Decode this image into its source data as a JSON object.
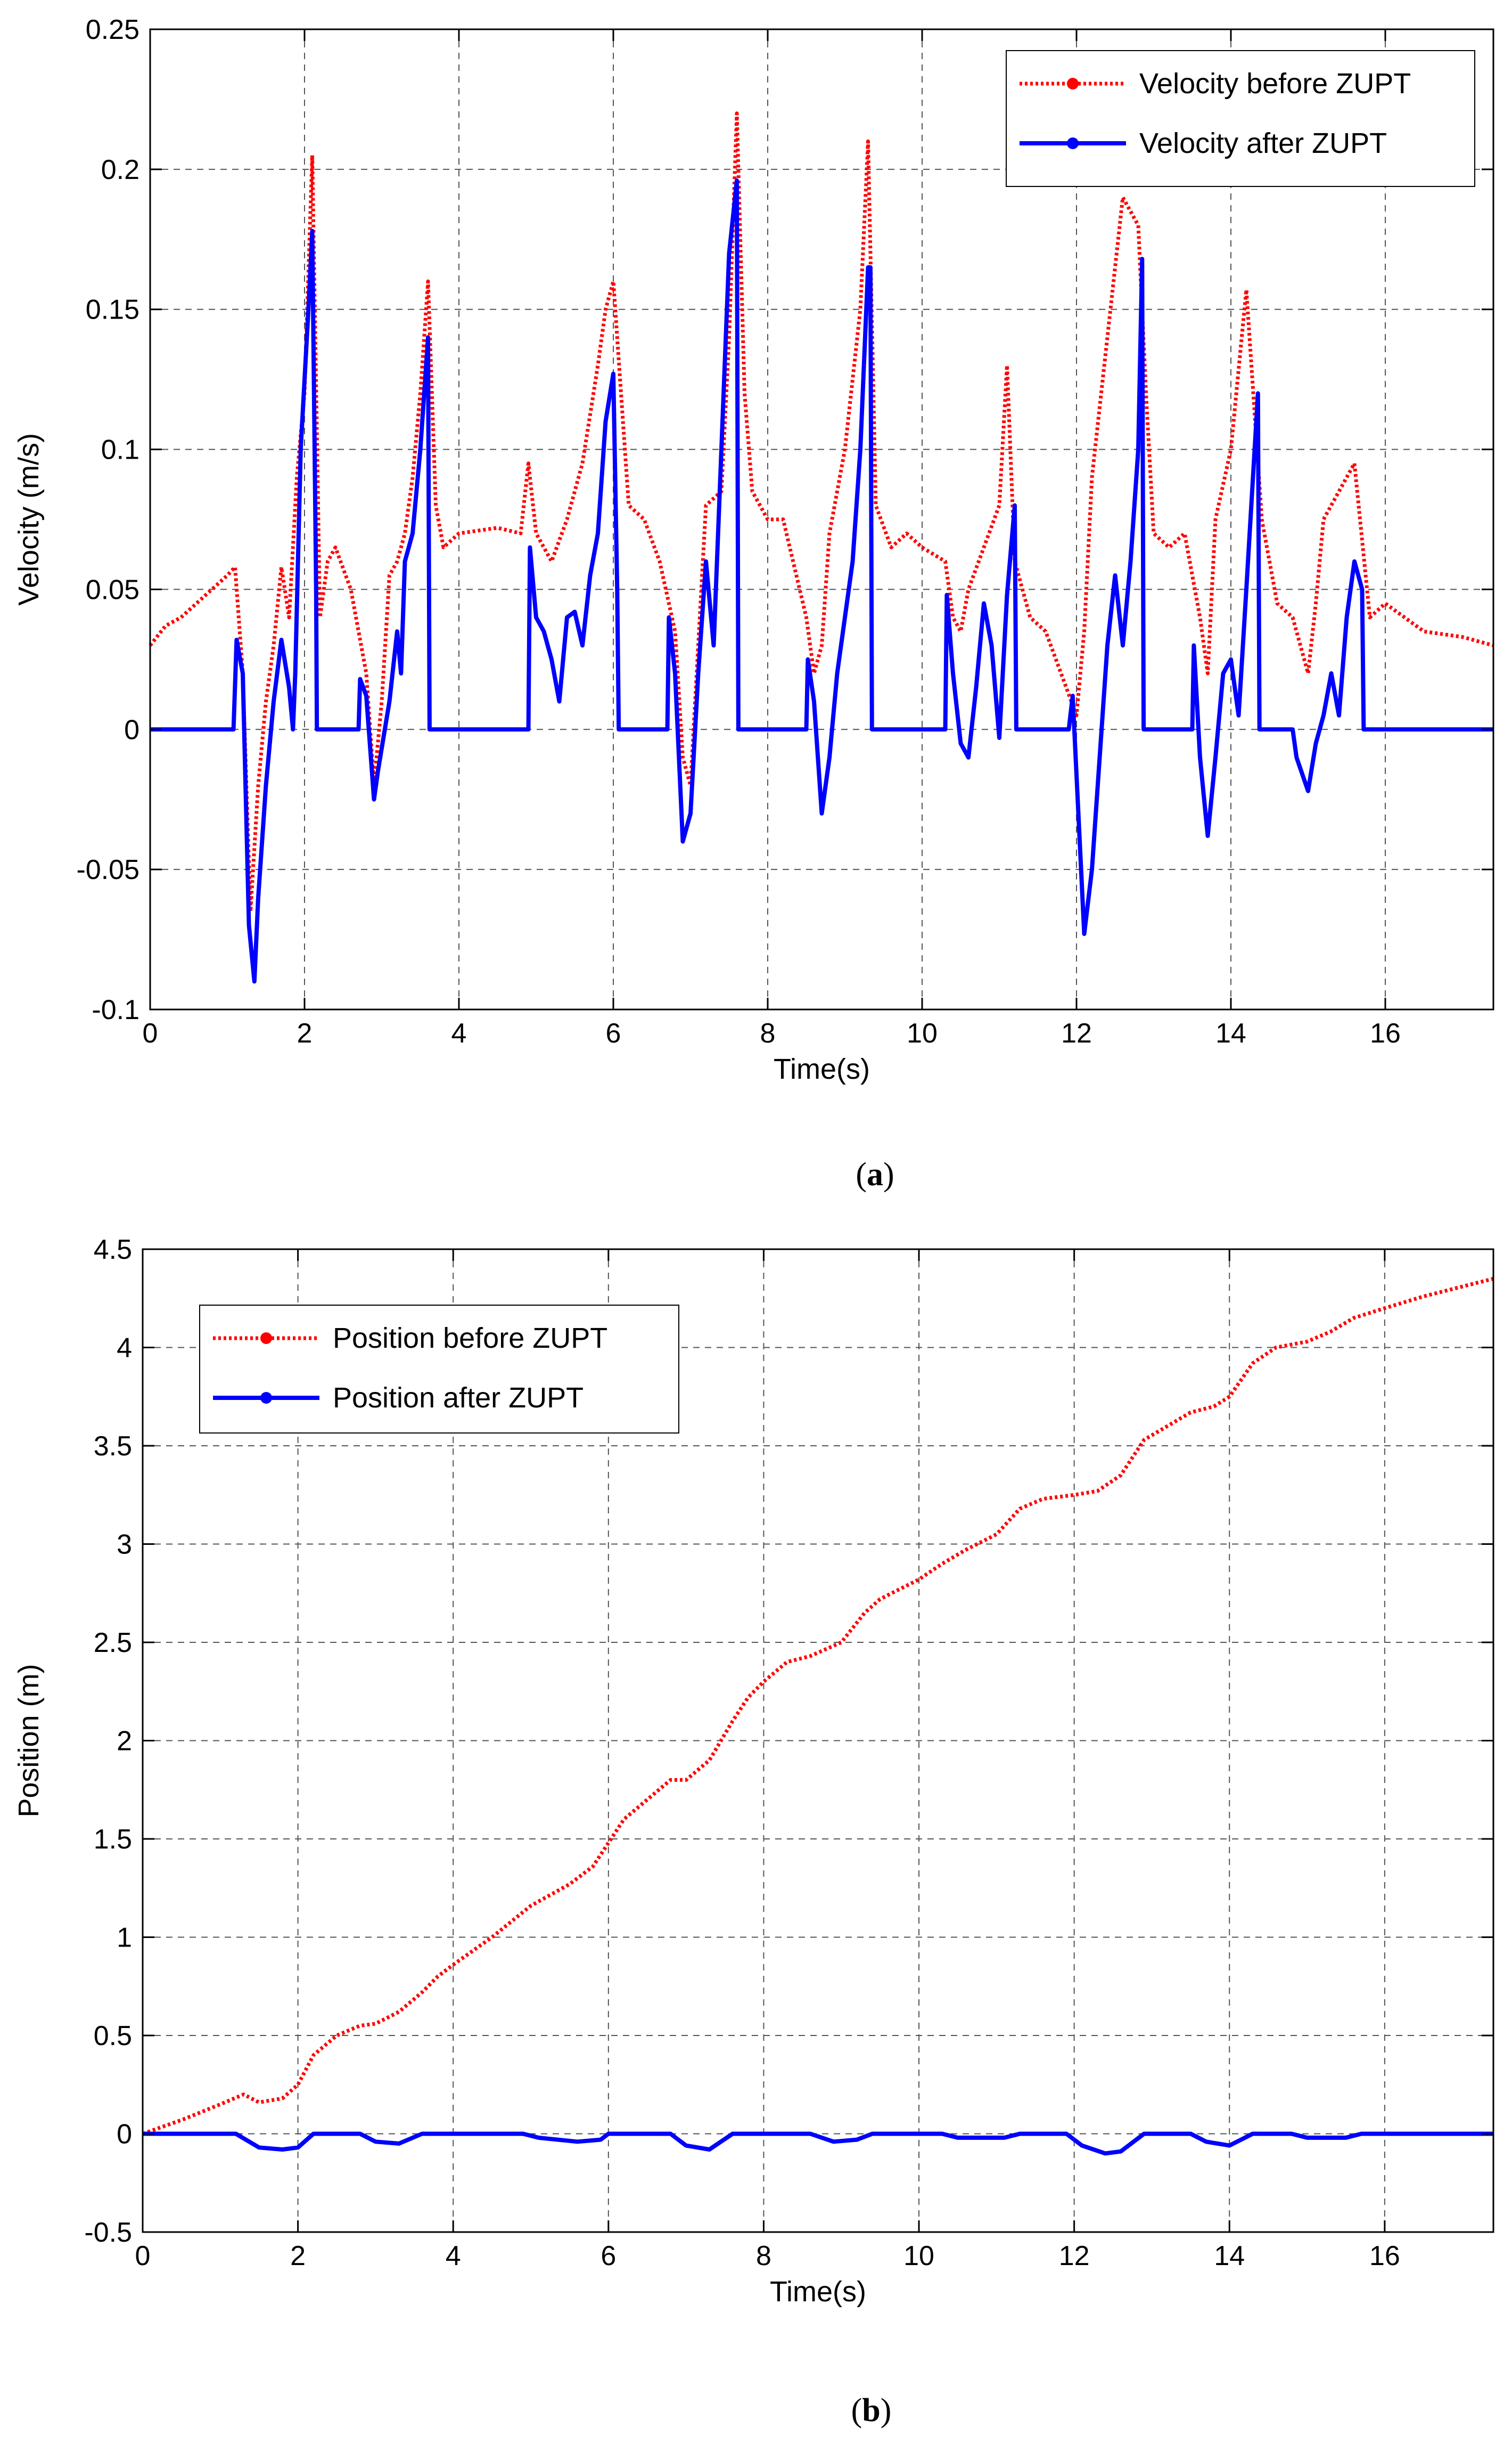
{
  "chart_data": [
    {
      "id": "a",
      "type": "line",
      "caption": "(a)",
      "caption_letter": "a",
      "xlabel": "Time(s)",
      "ylabel": "Velocity (m/s)",
      "xlim": [
        0,
        17.4
      ],
      "ylim": [
        -0.1,
        0.25
      ],
      "xticks": [
        0,
        2,
        4,
        6,
        8,
        10,
        12,
        14,
        16
      ],
      "yticks": [
        -0.1,
        -0.05,
        0,
        0.05,
        0.1,
        0.15,
        0.2,
        0.25
      ],
      "ytick_labels": [
        "-0.1",
        "-0.05",
        "0",
        "0.05",
        "0.1",
        "0.15",
        "0.2",
        "0.25"
      ],
      "legend_position": "top-right",
      "series": [
        {
          "name": "Velocity before ZUPT",
          "color": "#ff0000",
          "style": "dotted",
          "x": [
            0,
            0.2,
            0.4,
            0.6,
            0.8,
            1.0,
            1.1,
            1.2,
            1.3,
            1.4,
            1.5,
            1.6,
            1.7,
            1.8,
            1.9,
            2.0,
            2.1,
            2.2,
            2.3,
            2.4,
            2.6,
            2.7,
            2.8,
            2.9,
            3.0,
            3.1,
            3.2,
            3.3,
            3.4,
            3.5,
            3.6,
            3.7,
            3.8,
            4.0,
            4.5,
            4.8,
            4.9,
            5.0,
            5.2,
            5.4,
            5.6,
            5.8,
            5.9,
            6.0,
            6.1,
            6.2,
            6.4,
            6.6,
            6.8,
            6.9,
            7.0,
            7.2,
            7.4,
            7.5,
            7.6,
            7.7,
            7.8,
            8.0,
            8.2,
            8.5,
            8.6,
            8.7,
            8.8,
            9.0,
            9.2,
            9.3,
            9.4,
            9.6,
            9.8,
            10.0,
            10.3,
            10.4,
            10.5,
            10.6,
            10.8,
            11.0,
            11.1,
            11.2,
            11.4,
            11.6,
            11.8,
            12.0,
            12.1,
            12.2,
            12.4,
            12.6,
            12.8,
            12.9,
            13.0,
            13.2,
            13.4,
            13.6,
            13.7,
            13.8,
            14.0,
            14.2,
            14.4,
            14.5,
            14.6,
            14.8,
            15.0,
            15.1,
            15.2,
            15.4,
            15.6,
            15.8,
            16.0,
            16.5,
            17.0,
            17.4
          ],
          "y": [
            0.03,
            0.037,
            0.04,
            0.045,
            0.05,
            0.055,
            0.058,
            0.02,
            -0.065,
            -0.02,
            0.01,
            0.03,
            0.058,
            0.04,
            0.09,
            0.12,
            0.205,
            0.04,
            0.06,
            0.065,
            0.05,
            0.035,
            0.02,
            -0.02,
            0.01,
            0.055,
            0.06,
            0.07,
            0.09,
            0.12,
            0.16,
            0.08,
            0.065,
            0.07,
            0.072,
            0.07,
            0.095,
            0.07,
            0.06,
            0.075,
            0.095,
            0.13,
            0.15,
            0.16,
            0.12,
            0.08,
            0.075,
            0.06,
            0.035,
            -0.01,
            -0.02,
            0.08,
            0.085,
            0.14,
            0.22,
            0.12,
            0.085,
            0.075,
            0.075,
            0.04,
            0.02,
            0.03,
            0.07,
            0.1,
            0.15,
            0.21,
            0.08,
            0.065,
            0.07,
            0.065,
            0.06,
            0.04,
            0.035,
            0.05,
            0.065,
            0.08,
            0.13,
            0.06,
            0.04,
            0.035,
            0.02,
            0.005,
            0.035,
            0.09,
            0.14,
            0.19,
            0.18,
            0.12,
            0.07,
            0.065,
            0.07,
            0.04,
            0.02,
            0.075,
            0.1,
            0.157,
            0.075,
            0.06,
            0.045,
            0.04,
            0.02,
            0.045,
            0.075,
            0.085,
            0.095,
            0.04,
            0.045,
            0.035,
            0.033,
            0.03
          ]
        },
        {
          "name": "Velocity after ZUPT",
          "color": "#0000ff",
          "style": "solid",
          "x": [
            0,
            1.08,
            1.12,
            1.2,
            1.28,
            1.35,
            1.4,
            1.5,
            1.6,
            1.7,
            1.8,
            1.85,
            1.88,
            1.95,
            2.05,
            2.1,
            2.15,
            2.16,
            2.7,
            2.72,
            2.8,
            2.9,
            2.95,
            3.1,
            3.2,
            3.25,
            3.3,
            3.4,
            3.5,
            3.6,
            3.62,
            4.9,
            4.92,
            5.0,
            5.1,
            5.2,
            5.3,
            5.4,
            5.5,
            5.6,
            5.7,
            5.8,
            5.9,
            6.0,
            6.05,
            6.07,
            6.7,
            6.72,
            6.8,
            6.9,
            7.0,
            7.1,
            7.2,
            7.3,
            7.4,
            7.5,
            7.6,
            7.62,
            8.5,
            8.52,
            8.6,
            8.7,
            8.8,
            8.9,
            9.0,
            9.1,
            9.2,
            9.3,
            9.33,
            9.35,
            10.3,
            10.32,
            10.4,
            10.5,
            10.6,
            10.7,
            10.8,
            10.9,
            11.0,
            11.1,
            11.2,
            11.22,
            11.9,
            11.95,
            12.1,
            12.2,
            12.3,
            12.4,
            12.5,
            12.6,
            12.7,
            12.8,
            12.85,
            12.87,
            13.5,
            13.52,
            13.6,
            13.7,
            13.8,
            13.9,
            14.0,
            14.1,
            14.2,
            14.35,
            14.37,
            14.8,
            14.85,
            15.0,
            15.1,
            15.2,
            15.3,
            15.4,
            15.5,
            15.6,
            15.7,
            15.72,
            17.4
          ],
          "y": [
            0,
            0,
            0.032,
            0.02,
            -0.07,
            -0.09,
            -0.06,
            -0.02,
            0.01,
            0.032,
            0.015,
            0,
            0.02,
            0.1,
            0.15,
            0.178,
            0.05,
            0,
            0,
            0.018,
            0.012,
            -0.025,
            -0.015,
            0.01,
            0.035,
            0.02,
            0.06,
            0.07,
            0.1,
            0.14,
            0,
            0,
            0.065,
            0.04,
            0.035,
            0.025,
            0.01,
            0.04,
            0.042,
            0.03,
            0.055,
            0.07,
            0.11,
            0.127,
            0.05,
            0,
            0,
            0.04,
            0.02,
            -0.04,
            -0.03,
            0.02,
            0.06,
            0.03,
            0.1,
            0.17,
            0.196,
            0,
            0,
            0.025,
            0.01,
            -0.03,
            -0.01,
            0.02,
            0.04,
            0.06,
            0.1,
            0.165,
            0.165,
            0,
            0,
            0.048,
            0.02,
            -0.005,
            -0.01,
            0.015,
            0.045,
            0.03,
            -0.003,
            0.048,
            0.08,
            0,
            0,
            0.012,
            -0.073,
            -0.05,
            -0.01,
            0.03,
            0.055,
            0.03,
            0.06,
            0.1,
            0.168,
            0,
            0,
            0.03,
            -0.01,
            -0.038,
            -0.01,
            0.02,
            0.025,
            0.005,
            0.05,
            0.12,
            0,
            0,
            -0.01,
            -0.022,
            -0.005,
            0.005,
            0.02,
            0.005,
            0.04,
            0.06,
            0.05,
            0,
            0
          ]
        }
      ]
    },
    {
      "id": "b",
      "type": "line",
      "caption": "(b)",
      "caption_letter": "b",
      "xlabel": "Time(s)",
      "ylabel": "Position (m)",
      "xlim": [
        0,
        17.4
      ],
      "ylim": [
        -0.5,
        4.5
      ],
      "xticks": [
        0,
        2,
        4,
        6,
        8,
        10,
        12,
        14,
        16
      ],
      "yticks": [
        -0.5,
        0,
        0.5,
        1,
        1.5,
        2,
        2.5,
        3,
        3.5,
        4,
        4.5
      ],
      "ytick_labels": [
        "-0.5",
        "0",
        "0.5",
        "1",
        "1.5",
        "2",
        "2.5",
        "3",
        "3.5",
        "4",
        "4.5"
      ],
      "legend_position": "top-left",
      "series": [
        {
          "name": "Position before ZUPT",
          "color": "#ff0000",
          "style": "dotted",
          "x": [
            0,
            0.5,
            1.0,
            1.3,
            1.5,
            1.8,
            2.0,
            2.2,
            2.5,
            2.8,
            3.0,
            3.3,
            3.6,
            3.8,
            4.0,
            4.5,
            5.0,
            5.5,
            5.8,
            6.0,
            6.2,
            6.5,
            6.8,
            7.0,
            7.3,
            7.6,
            7.8,
            8.0,
            8.3,
            8.6,
            9.0,
            9.3,
            9.5,
            10.0,
            10.3,
            10.6,
            11.0,
            11.3,
            11.6,
            12.0,
            12.3,
            12.6,
            12.9,
            13.2,
            13.5,
            13.8,
            14.0,
            14.3,
            14.6,
            15.0,
            15.3,
            15.6,
            16.0,
            16.5,
            17.0,
            17.4
          ],
          "y": [
            0,
            0.07,
            0.15,
            0.2,
            0.16,
            0.18,
            0.25,
            0.4,
            0.5,
            0.55,
            0.56,
            0.62,
            0.72,
            0.8,
            0.86,
            1.0,
            1.16,
            1.27,
            1.36,
            1.48,
            1.6,
            1.7,
            1.8,
            1.8,
            1.9,
            2.1,
            2.22,
            2.3,
            2.4,
            2.43,
            2.5,
            2.65,
            2.72,
            2.82,
            2.9,
            2.97,
            3.05,
            3.18,
            3.23,
            3.25,
            3.27,
            3.35,
            3.53,
            3.6,
            3.67,
            3.7,
            3.75,
            3.92,
            4.0,
            4.03,
            4.08,
            4.15,
            4.2,
            4.26,
            4.31,
            4.35
          ]
        },
        {
          "name": "Position after ZUPT",
          "color": "#0000ff",
          "style": "solid",
          "x": [
            0,
            1.2,
            1.5,
            1.8,
            2.0,
            2.2,
            2.8,
            3.0,
            3.3,
            3.6,
            4.9,
            5.1,
            5.6,
            5.9,
            6.0,
            6.8,
            7.0,
            7.3,
            7.6,
            8.6,
            8.9,
            9.2,
            9.4,
            10.3,
            10.5,
            11.1,
            11.3,
            11.9,
            12.1,
            12.4,
            12.6,
            12.9,
            13.5,
            13.7,
            14.0,
            14.3,
            14.8,
            15.0,
            15.5,
            15.7,
            17.4
          ],
          "y": [
            0,
            0,
            -0.07,
            -0.08,
            -0.07,
            0,
            0,
            -0.04,
            -0.05,
            0,
            0,
            -0.02,
            -0.04,
            -0.03,
            0,
            0,
            -0.06,
            -0.08,
            0,
            0,
            -0.04,
            -0.03,
            0,
            0,
            -0.02,
            -0.02,
            0,
            0,
            -0.06,
            -0.1,
            -0.09,
            0,
            0,
            -0.04,
            -0.06,
            0,
            0,
            -0.02,
            -0.02,
            0,
            0
          ]
        }
      ]
    }
  ]
}
